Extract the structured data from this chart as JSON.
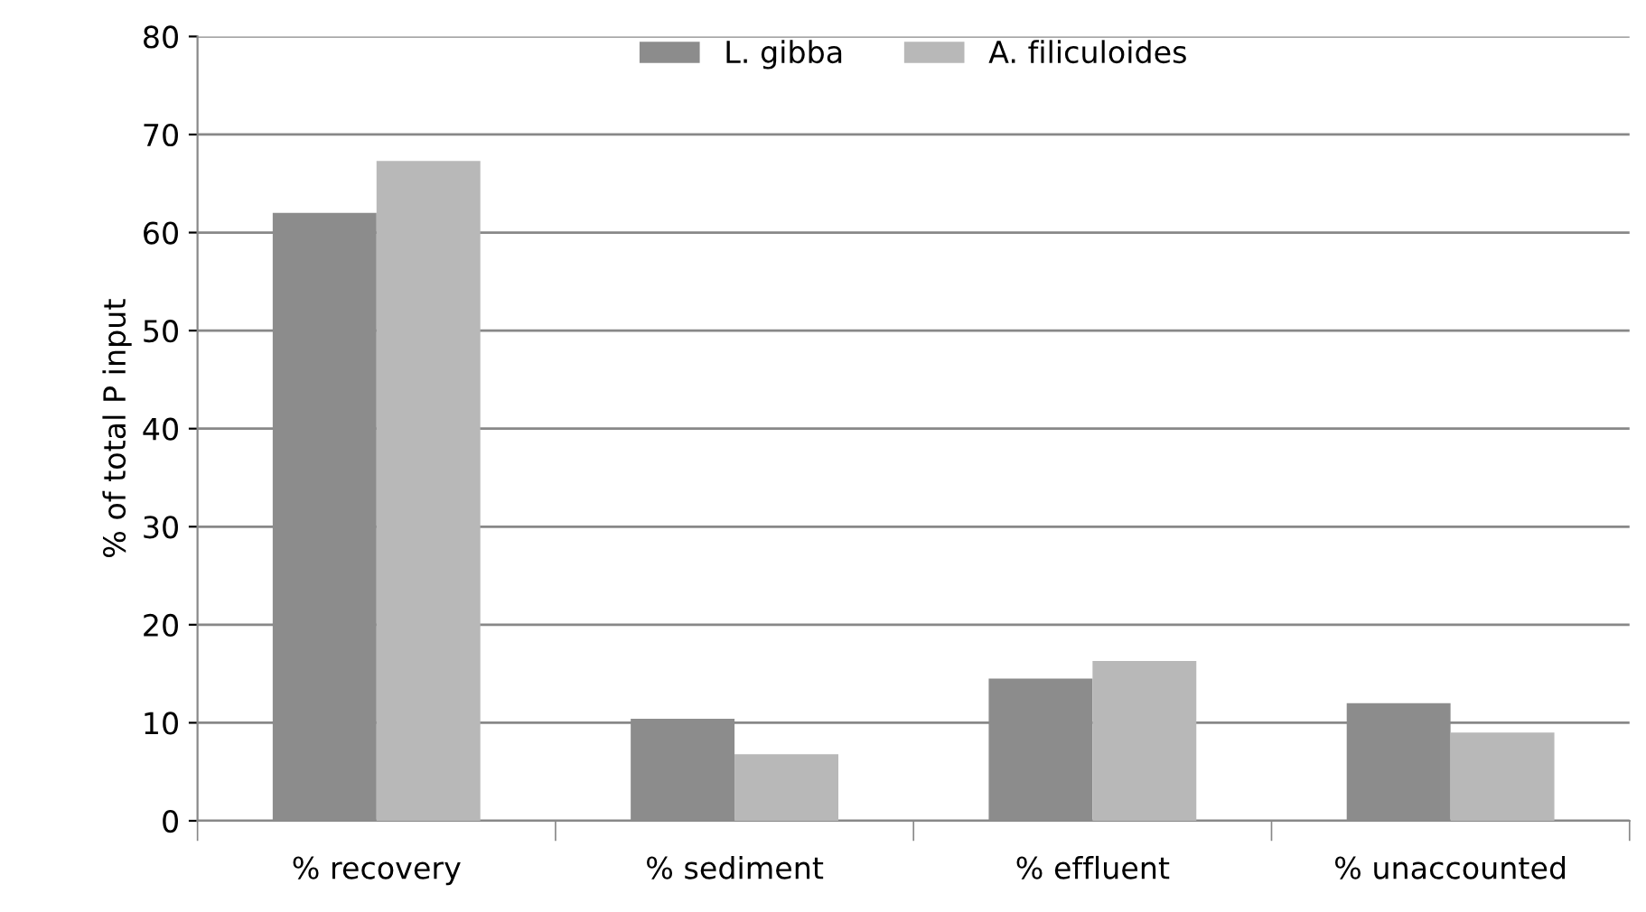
{
  "chart_data": {
    "type": "bar",
    "ylabel": "% of total P input",
    "categories": [
      "% recovery",
      "% sediment",
      "% effluent",
      "% unaccounted"
    ],
    "series": [
      {
        "name": "L. gibba",
        "color": "#8c8c8c",
        "values": [
          62.0,
          10.4,
          14.5,
          12.0
        ]
      },
      {
        "name": "A. filiculoides",
        "color": "#b8b8b8",
        "values": [
          67.3,
          6.8,
          16.3,
          9.0
        ]
      }
    ],
    "ylim": [
      0,
      80
    ],
    "yticks": [
      0,
      10,
      20,
      30,
      40,
      50,
      60,
      70,
      80
    ],
    "grid": "y",
    "legend": "top"
  }
}
